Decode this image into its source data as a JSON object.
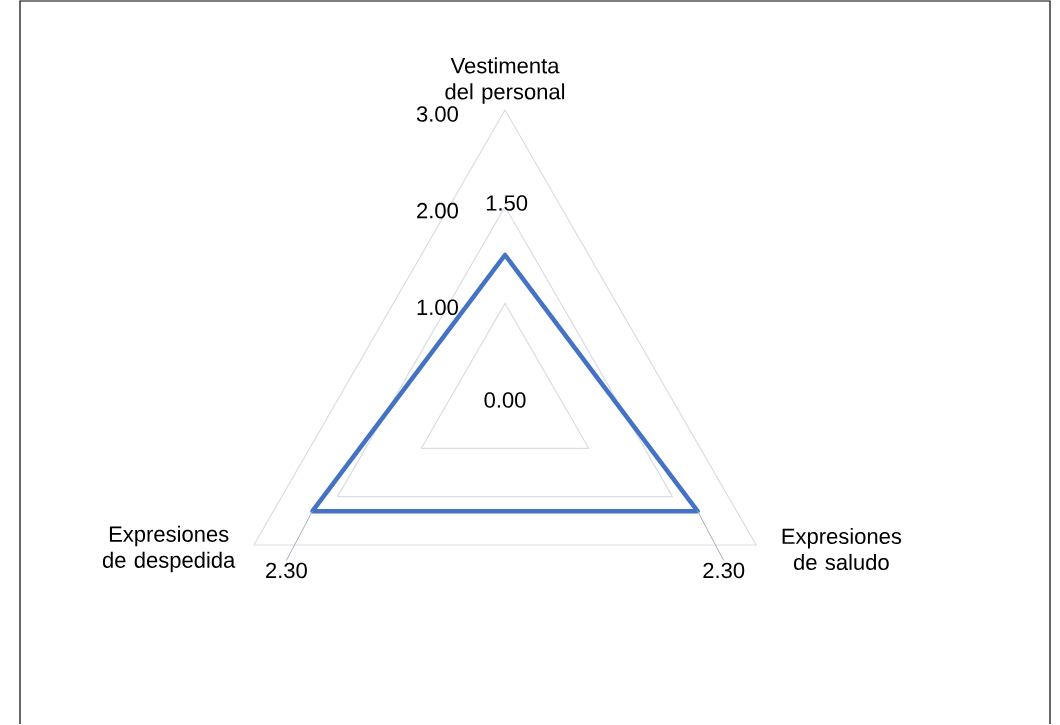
{
  "chart_data": {
    "type": "radar",
    "categories": [
      "Vestimenta del personal",
      "Expresiones de saludo",
      "Expresiones de despedida"
    ],
    "series": [
      {
        "color": "#4472c4",
        "values": [
          1.5,
          2.3,
          2.3
        ],
        "value_labels": [
          "1.50",
          "2.30",
          "2.30"
        ]
      }
    ],
    "ylim": [
      0,
      3
    ],
    "yticks": [
      {
        "value": 0,
        "label": "0.00"
      },
      {
        "value": 1,
        "label": "1.00"
      },
      {
        "value": 2,
        "label": "2.00"
      },
      {
        "value": 3,
        "label": "3.00"
      }
    ],
    "grid": true
  }
}
